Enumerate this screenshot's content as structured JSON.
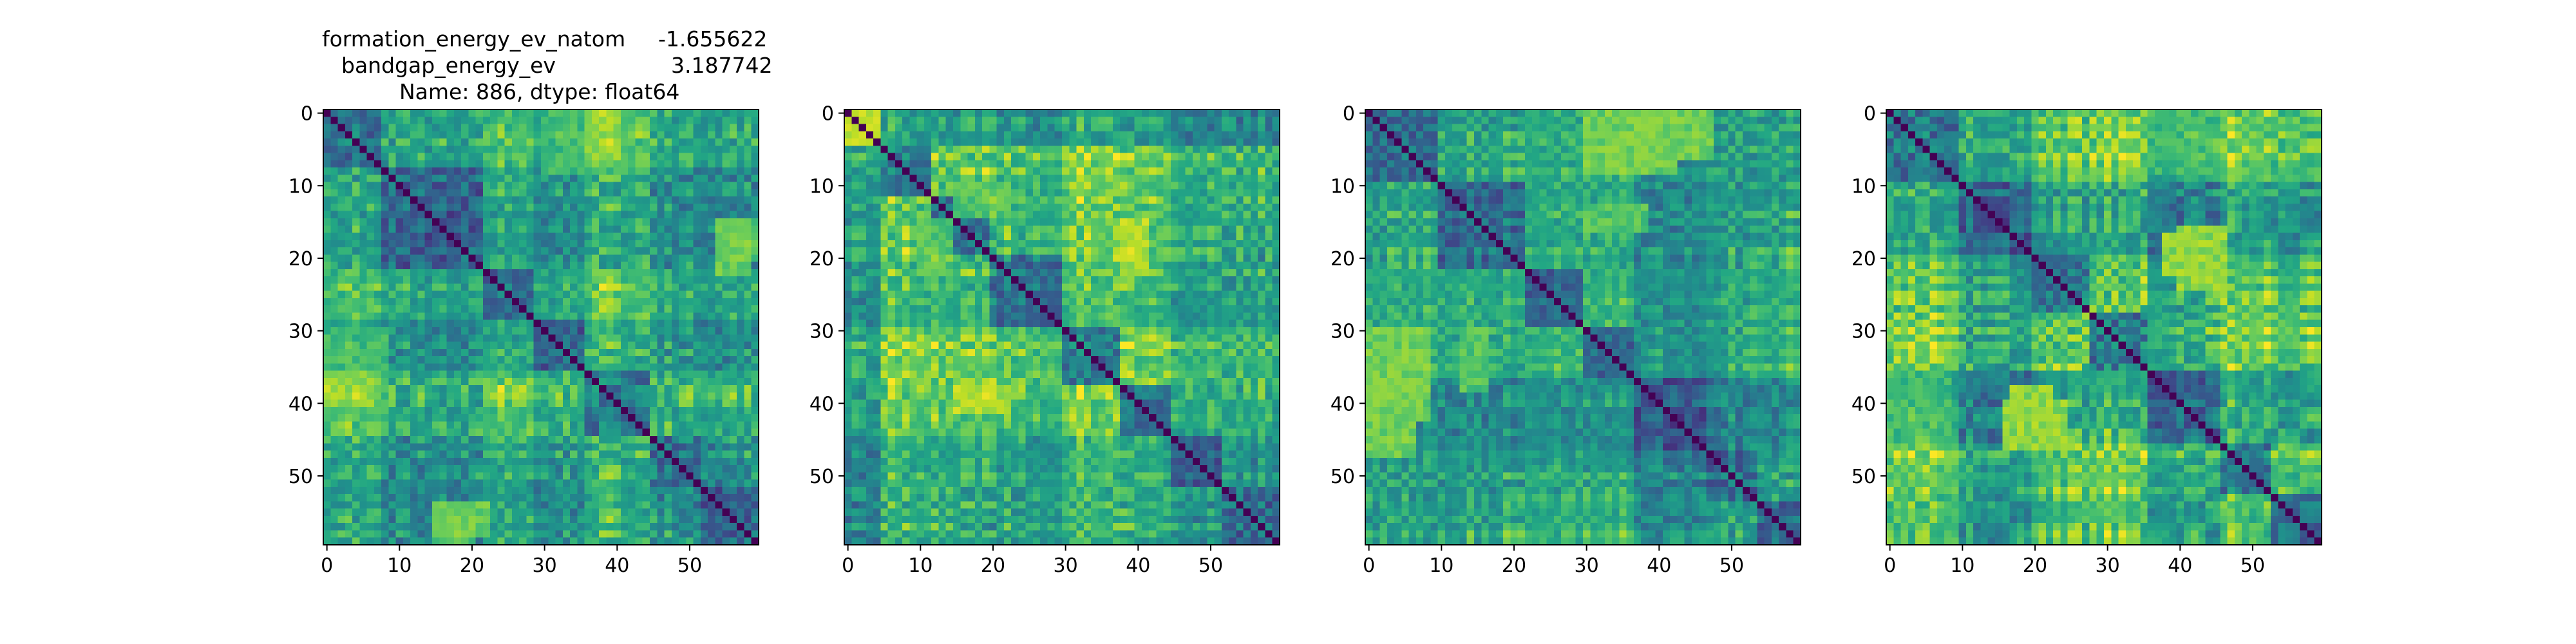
{
  "title": {
    "line1_label": "formation_energy_ev_natom",
    "line1_value": "-1.655622",
    "line2_label": "bandgap_energy_ev",
    "line2_value": "3.187742",
    "line3": "Name: 886, dtype: float64"
  },
  "colormap": "viridis",
  "colors": {
    "axis": "#000000",
    "background": "#ffffff",
    "cmap_low": "#440154",
    "cmap_high": "#fde725"
  },
  "chart_data": [
    {
      "type": "heatmap",
      "panel": 1,
      "matrix_size": 60,
      "xlim": [
        0,
        60
      ],
      "ylim": [
        60,
        0
      ],
      "xticks": [
        0,
        10,
        20,
        30,
        40,
        50
      ],
      "yticks": [
        0,
        10,
        20,
        30,
        40,
        50
      ],
      "diagonal_value": 0,
      "value_range": [
        0,
        1
      ],
      "blocks": [
        8,
        22,
        29,
        36,
        45,
        52
      ],
      "bright_regions": [
        {
          "rows": [
            36,
            40
          ],
          "cols": [
            0,
            6
          ],
          "value": 0.9
        },
        {
          "rows": [
            0,
            8
          ],
          "cols": [
            30,
            42
          ],
          "value": 0.75
        },
        {
          "rows": [
            54,
            58
          ],
          "cols": [
            15,
            22
          ],
          "value": 0.85
        },
        {
          "rows": [
            15,
            20
          ],
          "cols": [
            54,
            59
          ],
          "value": 0.8
        }
      ]
    },
    {
      "type": "heatmap",
      "panel": 2,
      "matrix_size": 60,
      "xlim": [
        0,
        60
      ],
      "ylim": [
        60,
        0
      ],
      "xticks": [
        0,
        10,
        20,
        30,
        40,
        50
      ],
      "yticks": [
        0,
        10,
        20,
        30,
        40,
        50
      ],
      "diagonal_value": 0,
      "value_range": [
        0,
        1
      ],
      "blocks": [
        5,
        12,
        20,
        30,
        38,
        45,
        52
      ],
      "bright_regions": [
        {
          "rows": [
            0,
            4
          ],
          "cols": [
            0,
            4
          ],
          "value": 0.95
        },
        {
          "rows": [
            38,
            41
          ],
          "cols": [
            15,
            22
          ],
          "value": 0.95
        },
        {
          "rows": [
            10,
            14
          ],
          "cols": [
            15,
            22
          ],
          "value": 0.8
        },
        {
          "rows": [
            16,
            22
          ],
          "cols": [
            38,
            41
          ],
          "value": 0.9
        }
      ]
    },
    {
      "type": "heatmap",
      "panel": 3,
      "matrix_size": 60,
      "xlim": [
        0,
        60
      ],
      "ylim": [
        60,
        0
      ],
      "xticks": [
        0,
        10,
        20,
        30,
        40,
        50
      ],
      "yticks": [
        0,
        10,
        20,
        30,
        40,
        50
      ],
      "diagonal_value": 0,
      "value_range": [
        0,
        1
      ],
      "blocks": [
        10,
        22,
        30,
        37,
        47,
        54
      ],
      "bright_regions": [
        {
          "rows": [
            0,
            8
          ],
          "cols": [
            30,
            42
          ],
          "value": 0.85
        },
        {
          "rows": [
            34,
            47
          ],
          "cols": [
            0,
            6
          ],
          "value": 0.85
        },
        {
          "rows": [
            13,
            16
          ],
          "cols": [
            30,
            38
          ],
          "value": 0.8
        }
      ]
    },
    {
      "type": "heatmap",
      "panel": 4,
      "matrix_size": 60,
      "xlim": [
        0,
        60
      ],
      "ylim": [
        60,
        0
      ],
      "xticks": [
        0,
        10,
        20,
        30,
        40,
        50
      ],
      "yticks": [
        0,
        10,
        20,
        30,
        40,
        50
      ],
      "diagonal_value": 0,
      "value_range": [
        0,
        1
      ],
      "blocks": [
        10,
        20,
        28,
        36,
        46,
        53
      ],
      "bright_regions": [
        {
          "rows": [
            16,
            24
          ],
          "cols": [
            40,
            46
          ],
          "value": 0.9
        },
        {
          "rows": [
            38,
            46
          ],
          "cols": [
            17,
            22
          ],
          "value": 0.9
        },
        {
          "rows": [
            0,
            8
          ],
          "cols": [
            30,
            46
          ],
          "value": 0.75
        }
      ]
    }
  ]
}
